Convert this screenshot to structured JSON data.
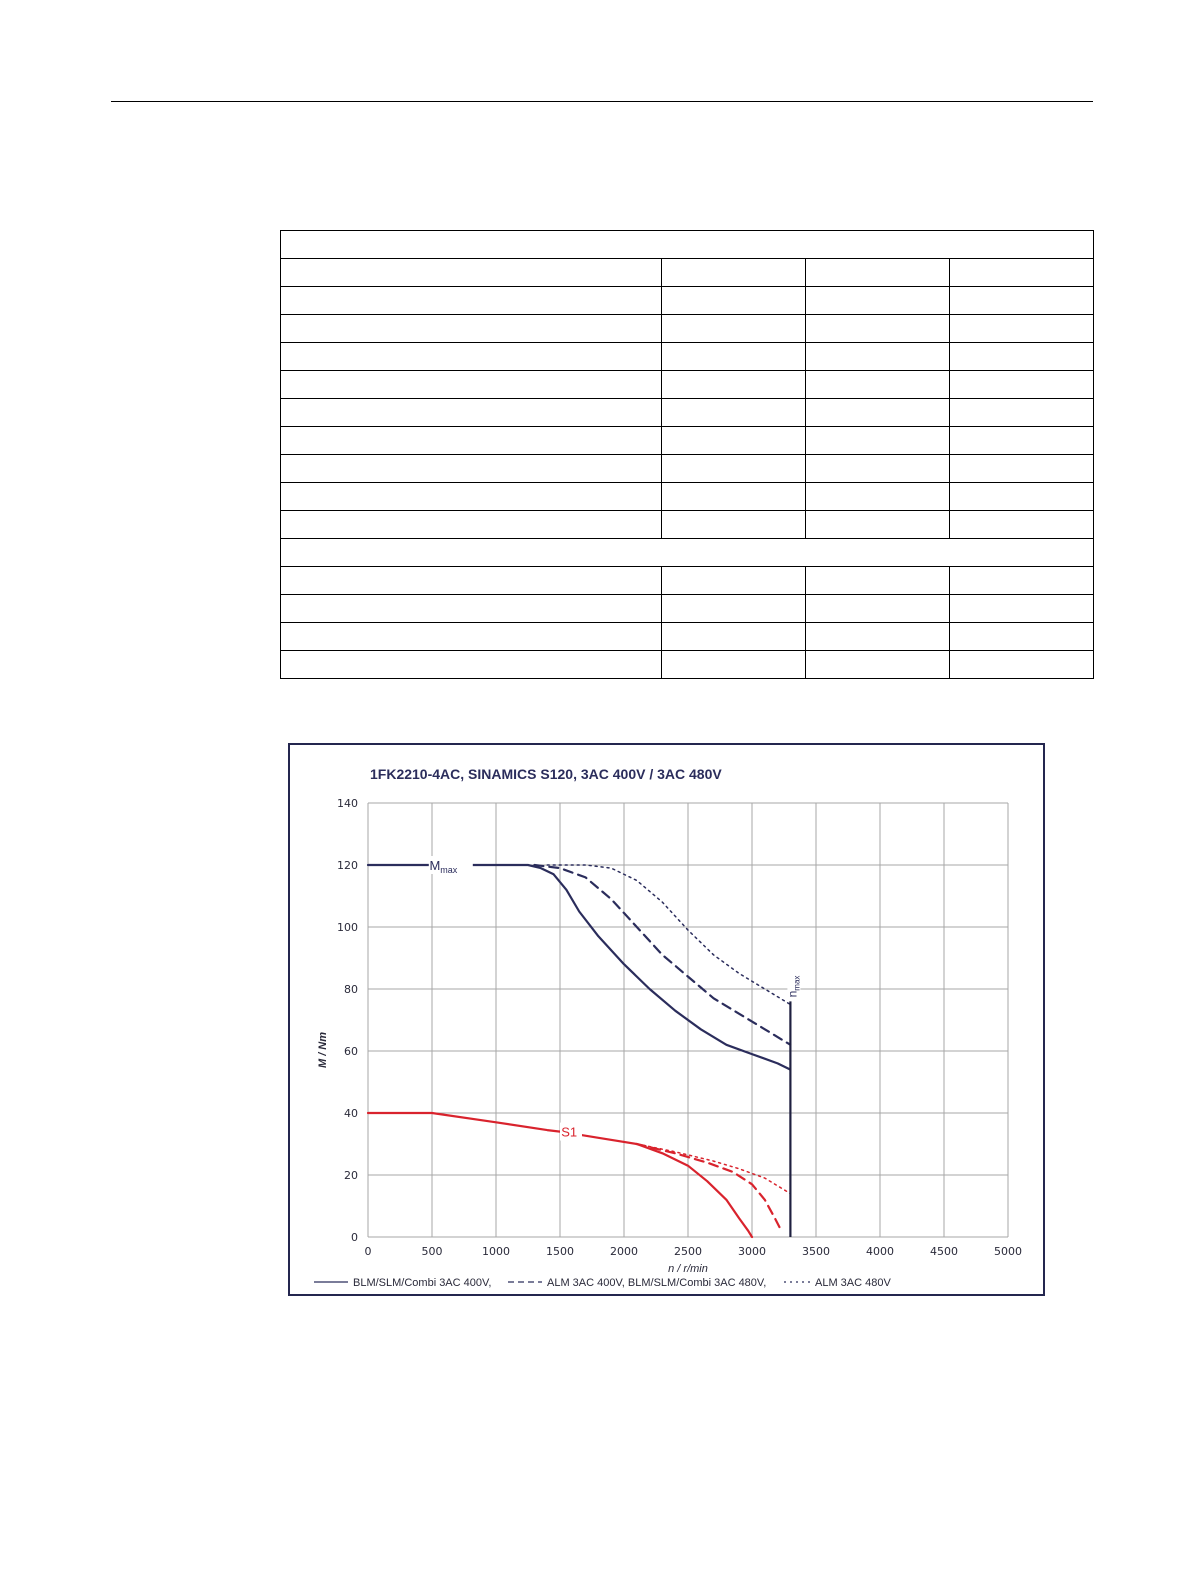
{
  "table": {
    "rows": [
      {
        "full": true
      },
      {
        "full": false
      },
      {
        "full": false
      },
      {
        "full": false
      },
      {
        "full": false
      },
      {
        "full": false
      },
      {
        "full": false
      },
      {
        "full": false
      },
      {
        "full": false
      },
      {
        "full": false
      },
      {
        "full": false
      },
      {
        "full": true
      },
      {
        "full": false
      },
      {
        "full": false
      },
      {
        "full": false
      },
      {
        "full": false
      }
    ]
  },
  "chart_data": {
    "type": "line",
    "title": "1FK2210-4AC, SINAMICS S120, 3AC 400V / 3AC 480V",
    "xlabel": "n / r/min",
    "ylabel": "M / Nm",
    "xlim": [
      0,
      5000
    ],
    "ylim": [
      0,
      140
    ],
    "x_ticks": [
      0,
      500,
      1000,
      1500,
      2000,
      2500,
      3000,
      3500,
      4000,
      4500,
      5000
    ],
    "y_ticks": [
      0,
      20,
      40,
      60,
      80,
      100,
      120,
      140
    ],
    "grid": true,
    "legend_position": "bottom",
    "legend": [
      {
        "label": "BLM/SLM/Combi 3AC 400V,",
        "style": "solid"
      },
      {
        "label": "ALM 3AC 400V, BLM/SLM/Combi 3AC 480V,",
        "style": "dashed"
      },
      {
        "label": "ALM 3AC 480V",
        "style": "dotted"
      }
    ],
    "annotations": {
      "mmax_main": "M",
      "mmax_sub": "max",
      "nmax_main": "n",
      "nmax_sub": "max",
      "s1": "S1"
    },
    "colors": {
      "max_curves": "#2b2d5c",
      "s1_curves": "#d9232d",
      "nmax_line": "#1f2040"
    },
    "nmax": {
      "x": 3300,
      "y_top": 76
    },
    "series": [
      {
        "name": "BLM/SLM/Combi 3AC 400V,",
        "group": "max",
        "style": "solid",
        "x": [
          0,
          1250,
          1350,
          1450,
          1550,
          1650,
          1800,
          2000,
          2200,
          2400,
          2600,
          2800,
          3000,
          3200,
          3300
        ],
        "y": [
          120,
          120,
          119,
          117,
          112,
          105,
          97,
          88,
          80,
          73,
          67,
          62,
          59,
          56,
          54
        ]
      },
      {
        "name": "ALM 3AC 400V, BLM/SLM/Combi 3AC 480V,",
        "group": "max",
        "style": "dashed",
        "x": [
          1300,
          1500,
          1700,
          1900,
          2100,
          2300,
          2500,
          2700,
          2900,
          3100,
          3300
        ],
        "y": [
          120,
          119,
          116,
          109,
          100,
          91,
          84,
          77,
          72,
          67,
          62
        ]
      },
      {
        "name": "ALM 3AC 480V",
        "group": "max",
        "style": "dotted",
        "x": [
          1400,
          1700,
          1900,
          2100,
          2300,
          2500,
          2700,
          2900,
          3100,
          3300
        ],
        "y": [
          120,
          120,
          119,
          115,
          108,
          99,
          91,
          85,
          80,
          75
        ]
      },
      {
        "name": "BLM/SLM/Combi 3AC 400V,",
        "group": "S1",
        "style": "solid",
        "x": [
          0,
          500,
          1000,
          1400,
          1500,
          1800,
          2100,
          2300,
          2500,
          2650,
          2800,
          2900,
          2970,
          3000
        ],
        "y": [
          40,
          40,
          37,
          34.5,
          34,
          32,
          30,
          27,
          23,
          18,
          12,
          6,
          2,
          0
        ]
      },
      {
        "name": "ALM 3AC 400V, BLM/SLM/Combi 3AC 480V,",
        "group": "S1",
        "style": "dashed",
        "x": [
          2100,
          2400,
          2650,
          2850,
          3000,
          3100,
          3180,
          3230
        ],
        "y": [
          30,
          27,
          24,
          21,
          17,
          12,
          6,
          2
        ]
      },
      {
        "name": "ALM 3AC 480V",
        "group": "S1",
        "style": "dotted",
        "x": [
          2100,
          2400,
          2700,
          2900,
          3100,
          3300
        ],
        "y": [
          30,
          27.5,
          24.5,
          22,
          19,
          14
        ]
      }
    ]
  }
}
